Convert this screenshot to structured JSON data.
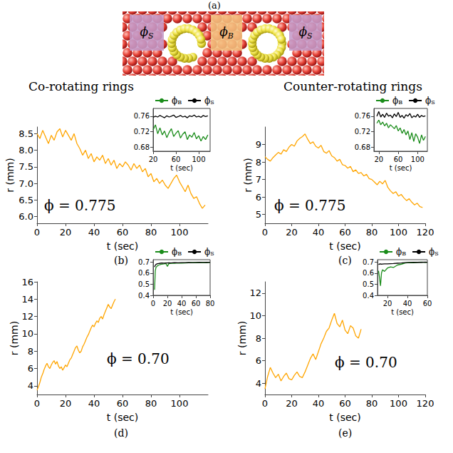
{
  "diagram": {
    "label": "(a)",
    "regions": [
      "ϕS",
      "ϕB",
      "ϕS"
    ]
  },
  "chart_data": [
    {
      "type": "line",
      "panel": "(b)",
      "title": "Co-rotating rings",
      "annotations": [
        "ϕ = 0.775"
      ],
      "xlabel": "t (sec)",
      "ylabel": "r (mm)",
      "xlim": [
        0,
        120
      ],
      "xticks": [
        0,
        20,
        40,
        60,
        80,
        100
      ],
      "ylim": [
        5.8,
        8.7
      ],
      "yticks": [
        {
          "value": 6,
          "label": "6.0"
        },
        6.5,
        {
          "value": 7,
          "label": "7.0"
        },
        7.5,
        {
          "value": 8,
          "label": "8.0"
        },
        8.5
      ],
      "series": [
        {
          "color": "#ffa500",
          "x": [
            0,
            2,
            4,
            6,
            8,
            10,
            12,
            14,
            16,
            18,
            20,
            22,
            24,
            26,
            28,
            30,
            32,
            34,
            36,
            38,
            40,
            42,
            44,
            46,
            48,
            50,
            52,
            54,
            56,
            58,
            60,
            62,
            64,
            66,
            68,
            70,
            72,
            74,
            76,
            78,
            80,
            82,
            84,
            86,
            88,
            90,
            92,
            94,
            96,
            98,
            100,
            102,
            104,
            106,
            108,
            110,
            112,
            114,
            116,
            118
          ],
          "values": [
            8.5,
            8.35,
            8.6,
            8.4,
            8.2,
            8.45,
            8.3,
            8.55,
            8.65,
            8.4,
            8.6,
            8.45,
            8.3,
            8.5,
            8.2,
            8.05,
            7.85,
            8.0,
            7.75,
            7.9,
            7.65,
            7.8,
            7.7,
            7.85,
            7.6,
            7.75,
            7.55,
            7.7,
            7.45,
            7.6,
            7.5,
            7.65,
            7.55,
            7.4,
            7.6,
            7.45,
            7.55,
            7.35,
            7.45,
            7.2,
            7.3,
            7.05,
            7.15,
            7.0,
            7.1,
            6.95,
            6.85,
            7.0,
            7.15,
            7.25,
            7.05,
            6.9,
            6.75,
            6.95,
            6.7,
            6.55,
            6.6,
            6.4,
            6.25,
            6.35
          ]
        }
      ],
      "inset": {
        "type": "line",
        "xlabel": "t (sec)",
        "xlim": [
          20,
          120
        ],
        "xticks": [
          20,
          60,
          100
        ],
        "ylim": [
          0.67,
          0.78
        ],
        "yticks": [
          0.68,
          0.72,
          0.76
        ],
        "legend": "top",
        "series": [
          {
            "name": "ϕB",
            "color": "#1a8c1a",
            "x": [
              20,
              24,
              28,
              32,
              36,
              40,
              44,
              48,
              52,
              56,
              60,
              64,
              68,
              72,
              76,
              80,
              84,
              88,
              92,
              96,
              100,
              104,
              108,
              112,
              116
            ],
            "values": [
              0.725,
              0.738,
              0.715,
              0.73,
              0.712,
              0.722,
              0.705,
              0.718,
              0.728,
              0.708,
              0.716,
              0.723,
              0.704,
              0.714,
              0.72,
              0.7,
              0.712,
              0.706,
              0.718,
              0.702,
              0.71,
              0.696,
              0.708,
              0.7,
              0.712
            ]
          },
          {
            "name": "ϕS",
            "color": "#000000",
            "x": [
              20,
              24,
              28,
              32,
              36,
              40,
              44,
              48,
              52,
              56,
              60,
              64,
              68,
              72,
              76,
              80,
              84,
              88,
              92,
              96,
              100,
              104,
              108,
              112,
              116
            ],
            "values": [
              0.757,
              0.76,
              0.758,
              0.762,
              0.759,
              0.756,
              0.761,
              0.758,
              0.76,
              0.763,
              0.757,
              0.759,
              0.762,
              0.758,
              0.76,
              0.756,
              0.761,
              0.759,
              0.763,
              0.758,
              0.76,
              0.757,
              0.762,
              0.759,
              0.761
            ]
          }
        ]
      }
    },
    {
      "type": "line",
      "panel": "(c)",
      "title": "Counter-rotating rings",
      "annotations": [
        "ϕ = 0.775"
      ],
      "xlabel": "t (sec)",
      "ylabel": "r (mm)",
      "xlim": [
        0,
        120
      ],
      "xticks": [
        0,
        20,
        40,
        60,
        80,
        100,
        120
      ],
      "ylim": [
        4.5,
        10
      ],
      "yticks": [
        5,
        6,
        7,
        8,
        9
      ],
      "series": [
        {
          "color": "#ffa500",
          "x": [
            0,
            2,
            4,
            6,
            8,
            10,
            12,
            14,
            16,
            18,
            20,
            22,
            24,
            26,
            28,
            30,
            32,
            34,
            36,
            38,
            40,
            42,
            44,
            46,
            48,
            50,
            52,
            54,
            56,
            58,
            60,
            62,
            64,
            66,
            68,
            70,
            72,
            74,
            76,
            78,
            80,
            82,
            84,
            86,
            88,
            90,
            92,
            94,
            96,
            98,
            100,
            102,
            104,
            106,
            108,
            110,
            112,
            114,
            116,
            118
          ],
          "values": [
            8.3,
            8.15,
            8.05,
            8.25,
            8.4,
            8.55,
            8.45,
            8.7,
            8.6,
            8.85,
            9.0,
            8.9,
            9.2,
            9.35,
            9.45,
            9.6,
            9.3,
            9.05,
            9.15,
            8.9,
            8.8,
            8.95,
            8.6,
            8.5,
            8.65,
            8.35,
            8.25,
            8.05,
            8.15,
            7.85,
            7.8,
            7.65,
            7.75,
            7.45,
            7.55,
            7.35,
            7.4,
            7.2,
            7.3,
            7.05,
            7.0,
            6.85,
            6.7,
            6.9,
            6.75,
            6.95,
            6.55,
            6.35,
            6.2,
            6.3,
            6.05,
            6.15,
            5.95,
            5.8,
            5.9,
            5.7,
            5.55,
            5.65,
            5.45,
            5.4
          ]
        }
      ],
      "inset": {
        "type": "line",
        "xlabel": "t (sec)",
        "xlim": [
          10,
          120
        ],
        "xticks": [
          20,
          60,
          100
        ],
        "ylim": [
          0.67,
          0.78
        ],
        "yticks": [
          0.68,
          0.72,
          0.76
        ],
        "legend": "top",
        "series": [
          {
            "name": "ϕB",
            "color": "#1a8c1a",
            "x": [
              16,
              20,
              24,
              28,
              32,
              36,
              40,
              44,
              48,
              52,
              56,
              60,
              64,
              68,
              72,
              76,
              80,
              84,
              88,
              92,
              96,
              100,
              104,
              108,
              112,
              116
            ],
            "values": [
              0.742,
              0.75,
              0.738,
              0.745,
              0.735,
              0.742,
              0.73,
              0.738,
              0.733,
              0.728,
              0.736,
              0.722,
              0.73,
              0.716,
              0.726,
              0.712,
              0.722,
              0.7,
              0.718,
              0.695,
              0.715,
              0.706,
              0.69,
              0.712,
              0.698,
              0.708
            ]
          },
          {
            "name": "ϕS",
            "color": "#000000",
            "x": [
              16,
              20,
              24,
              28,
              32,
              36,
              40,
              44,
              48,
              52,
              56,
              60,
              64,
              68,
              72,
              76,
              80,
              84,
              88,
              92,
              96,
              100,
              104,
              108,
              112,
              116
            ],
            "values": [
              0.76,
              0.772,
              0.758,
              0.765,
              0.757,
              0.768,
              0.76,
              0.763,
              0.756,
              0.766,
              0.759,
              0.77,
              0.757,
              0.762,
              0.755,
              0.764,
              0.76,
              0.767,
              0.756,
              0.761,
              0.758,
              0.765,
              0.757,
              0.762,
              0.759,
              0.761
            ]
          }
        ]
      }
    },
    {
      "type": "line",
      "panel": "(d)",
      "annotations": [
        "ϕ = 0.70"
      ],
      "xlabel": "t (sec)",
      "ylabel": "r (mm)",
      "xlim": [
        0,
        120
      ],
      "xticks": [
        0,
        20,
        40,
        60,
        80,
        100
      ],
      "ylim": [
        3,
        16
      ],
      "yticks": [
        4,
        6,
        8,
        10,
        12,
        14,
        16
      ],
      "series": [
        {
          "color": "#ffa500",
          "x": [
            0,
            1,
            2,
            3,
            4,
            5,
            6,
            7,
            8,
            9,
            10,
            11,
            12,
            13,
            14,
            15,
            16,
            17,
            18,
            19,
            20,
            21,
            22,
            23,
            24,
            25,
            26,
            27,
            28,
            29,
            30,
            31,
            32,
            33,
            34,
            35,
            36,
            37,
            38,
            39,
            40,
            41,
            42,
            43,
            44,
            45,
            46,
            47,
            48,
            49,
            50,
            51,
            52,
            53,
            54,
            55
          ],
          "values": [
            3.5,
            3.9,
            4.4,
            5.0,
            5.4,
            5.9,
            6.3,
            6.6,
            6.2,
            6.0,
            6.4,
            6.7,
            6.9,
            6.5,
            6.8,
            6.3,
            6.0,
            6.2,
            5.8,
            6.1,
            6.4,
            6.2,
            6.6,
            7.0,
            7.2,
            7.6,
            8.0,
            8.4,
            8.6,
            8.1,
            7.8,
            8.0,
            8.5,
            8.8,
            9.2,
            9.6,
            9.9,
            10.3,
            10.7,
            11.0,
            10.8,
            11.2,
            11.5,
            11.3,
            11.8,
            12.0,
            11.7,
            12.2,
            12.6,
            13.0,
            13.4,
            13.1,
            12.9,
            13.3,
            13.7,
            14.0
          ]
        }
      ],
      "inset": {
        "type": "line",
        "xlabel": "t (sec)",
        "xlim": [
          0,
          80
        ],
        "xticks": [
          0,
          20,
          40,
          60,
          80
        ],
        "ylim": [
          0.4,
          0.72
        ],
        "yticks": [
          0.4,
          0.5,
          0.6,
          0.7
        ],
        "legend": "top",
        "series": [
          {
            "name": "ϕB",
            "color": "#1a8c1a",
            "x": [
              2,
              3,
              4,
              6,
              8,
              10,
              12,
              15,
              18,
              20,
              22,
              25,
              30,
              35,
              40,
              45,
              50,
              55,
              60,
              65,
              70,
              75,
              80
            ],
            "values": [
              0.45,
              0.62,
              0.65,
              0.665,
              0.672,
              0.676,
              0.68,
              0.682,
              0.685,
              0.66,
              0.684,
              0.687,
              0.688,
              0.69,
              0.689,
              0.691,
              0.692,
              0.693,
              0.692,
              0.694,
              0.695,
              0.694,
              0.696
            ]
          },
          {
            "name": "ϕS",
            "color": "#000000",
            "x": [
              2,
              3,
              4,
              6,
              8,
              10,
              12,
              15,
              18,
              20,
              22,
              25,
              30,
              35,
              40,
              45,
              50,
              55,
              60,
              65,
              70,
              75,
              80
            ],
            "values": [
              0.655,
              0.67,
              0.678,
              0.684,
              0.686,
              0.688,
              0.69,
              0.689,
              0.691,
              0.69,
              0.692,
              0.691,
              0.693,
              0.692,
              0.694,
              0.693,
              0.695,
              0.694,
              0.695,
              0.696,
              0.695,
              0.696,
              0.697
            ]
          }
        ]
      }
    },
    {
      "type": "line",
      "panel": "(e)",
      "annotations": [
        "ϕ = 0.70"
      ],
      "xlabel": "t (sec)",
      "ylabel": "r (mm)",
      "xlim": [
        0,
        120
      ],
      "xticks": [
        0,
        20,
        40,
        60,
        80,
        100,
        120
      ],
      "ylim": [
        3,
        13
      ],
      "yticks": [
        4,
        6,
        8,
        10,
        12
      ],
      "series": [
        {
          "color": "#ffa500",
          "x": [
            0,
            2,
            4,
            6,
            8,
            10,
            12,
            14,
            16,
            18,
            20,
            22,
            24,
            26,
            28,
            30,
            32,
            34,
            36,
            38,
            40,
            42,
            44,
            46,
            48,
            50,
            52,
            54,
            56,
            58,
            60,
            62,
            64,
            66,
            68,
            70,
            72
          ],
          "values": [
            3.5,
            4.6,
            5.4,
            4.9,
            4.5,
            4.8,
            4.2,
            4.6,
            4.9,
            4.4,
            4.3,
            4.7,
            5.0,
            4.6,
            4.5,
            5.0,
            5.6,
            6.2,
            6.6,
            6.1,
            6.8,
            7.5,
            8.0,
            8.6,
            8.9,
            9.6,
            10.2,
            9.3,
            9.0,
            9.6,
            8.7,
            8.4,
            9.1,
            8.9,
            8.2,
            8.0,
            8.8
          ]
        }
      ],
      "inset": {
        "type": "line",
        "xlabel": "t (sec)",
        "xlim": [
          10,
          60
        ],
        "xticks": [
          20,
          40,
          60
        ],
        "ylim": [
          0.4,
          0.72
        ],
        "yticks": [
          0.4,
          0.5,
          0.6,
          0.7
        ],
        "legend": "top",
        "series": [
          {
            "name": "ϕB",
            "color": "#1a8c1a",
            "x": [
              11,
              12,
              13,
              14,
              15,
              17,
              20,
              23,
              26,
              30,
              34,
              38,
              42,
              46,
              50,
              54,
              58,
              60
            ],
            "values": [
              0.62,
              0.56,
              0.485,
              0.6,
              0.63,
              0.615,
              0.645,
              0.655,
              0.65,
              0.672,
              0.68,
              0.69,
              0.694,
              0.692,
              0.696,
              0.698,
              0.695,
              0.697
            ]
          },
          {
            "name": "ϕS",
            "color": "#000000",
            "x": [
              11,
              12,
              13,
              14,
              15,
              17,
              20,
              23,
              26,
              30,
              34,
              38,
              42,
              46,
              50,
              54,
              58,
              60
            ],
            "values": [
              0.678,
              0.68,
              0.682,
              0.679,
              0.681,
              0.683,
              0.682,
              0.684,
              0.685,
              0.688,
              0.69,
              0.693,
              0.695,
              0.696,
              0.697,
              0.696,
              0.698,
              0.697
            ]
          }
        ]
      }
    }
  ]
}
